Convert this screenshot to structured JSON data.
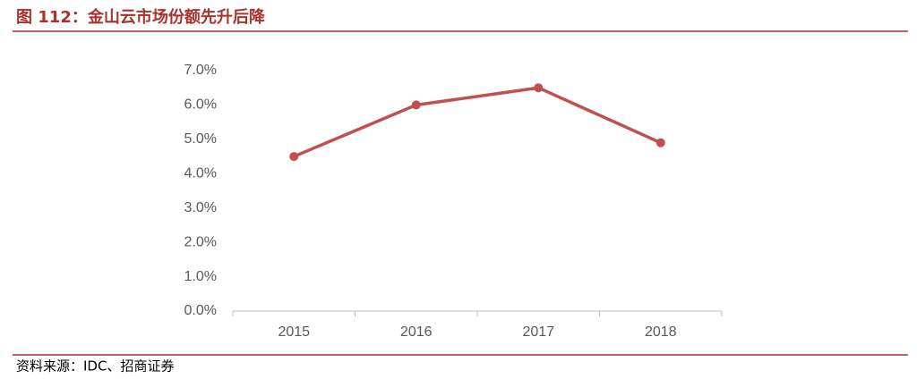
{
  "chart_data": {
    "type": "line",
    "title": "图 112：金山云市场份额先升后降",
    "source": "资料来源：IDC、招商证券",
    "categories": [
      "2015",
      "2016",
      "2017",
      "2018"
    ],
    "series": [
      {
        "name": "金山云市场份额",
        "color": "#c0504d",
        "values": [
          4.5,
          6.0,
          6.5,
          4.9
        ]
      }
    ],
    "ylim": [
      0,
      7
    ],
    "yticks": [
      {
        "value": 0,
        "label": "0.0%"
      },
      {
        "value": 1,
        "label": "1.0%"
      },
      {
        "value": 2,
        "label": "2.0%"
      },
      {
        "value": 3,
        "label": "3.0%"
      },
      {
        "value": 4,
        "label": "4.0%"
      },
      {
        "value": 5,
        "label": "5.0%"
      },
      {
        "value": 6,
        "label": "6.0%"
      },
      {
        "value": 7,
        "label": "7.0%"
      }
    ],
    "grid": false
  }
}
